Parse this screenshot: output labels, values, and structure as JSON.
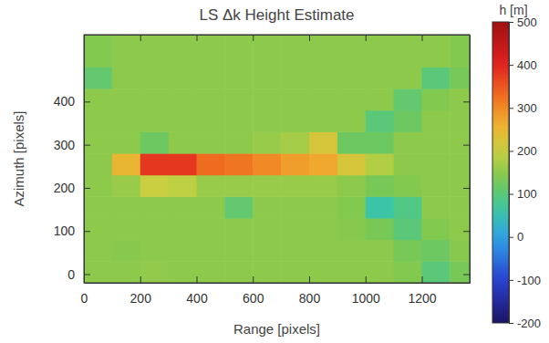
{
  "chart_data": {
    "type": "heatmap",
    "title": "LS Δk Height Estimate",
    "x_label": "Range [pixels]",
    "y_label": "Azimuth [pixels]",
    "xlim": [
      0,
      1370
    ],
    "ylim": [
      -20,
      555
    ],
    "xticks": [
      0,
      200,
      400,
      600,
      800,
      1000,
      1200
    ],
    "yticks": [
      0,
      100,
      200,
      300,
      400
    ],
    "x_edges": [
      0,
      100,
      200,
      300,
      400,
      500,
      600,
      700,
      800,
      900,
      1000,
      1100,
      1200,
      1300,
      1370
    ],
    "y_edges": [
      -20,
      30,
      80,
      130,
      180,
      230,
      280,
      330,
      380,
      430,
      480,
      555
    ],
    "cells": [
      [
        150,
        150,
        155,
        150,
        150,
        150,
        150,
        150,
        150,
        150,
        150,
        140,
        100,
        130
      ],
      [
        150,
        145,
        150,
        150,
        150,
        150,
        150,
        150,
        150,
        150,
        150,
        130,
        120,
        145
      ],
      [
        150,
        150,
        150,
        150,
        150,
        150,
        150,
        150,
        150,
        145,
        130,
        100,
        140,
        150
      ],
      [
        150,
        150,
        150,
        150,
        150,
        110,
        150,
        150,
        150,
        140,
        60,
        90,
        150,
        150
      ],
      [
        150,
        160,
        200,
        190,
        160,
        160,
        160,
        160,
        160,
        150,
        130,
        140,
        150,
        150
      ],
      [
        150,
        250,
        380,
        380,
        330,
        320,
        300,
        280,
        270,
        220,
        180,
        150,
        150,
        150
      ],
      [
        150,
        150,
        120,
        150,
        150,
        150,
        160,
        170,
        220,
        120,
        120,
        150,
        150,
        150
      ],
      [
        150,
        150,
        150,
        150,
        150,
        150,
        150,
        150,
        150,
        150,
        100,
        120,
        150,
        150
      ],
      [
        150,
        150,
        150,
        150,
        150,
        150,
        150,
        150,
        150,
        150,
        150,
        110,
        140,
        150
      ],
      [
        110,
        150,
        150,
        150,
        150,
        150,
        150,
        150,
        150,
        150,
        150,
        150,
        100,
        130
      ],
      [
        140,
        150,
        150,
        150,
        150,
        150,
        150,
        150,
        150,
        150,
        150,
        150,
        150,
        140
      ]
    ],
    "colorbar": {
      "title": "h [m]",
      "range": [
        -200,
        500
      ],
      "ticks": [
        -200,
        -100,
        0,
        100,
        200,
        300,
        400,
        500
      ]
    }
  }
}
